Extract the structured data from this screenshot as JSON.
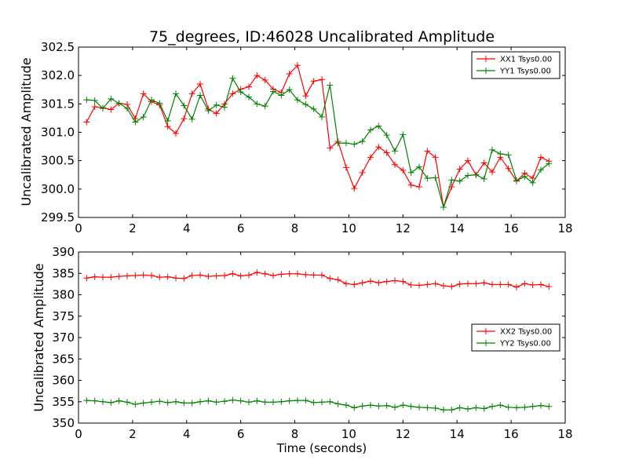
{
  "chart_data": [
    {
      "type": "line",
      "title": "75_degrees, ID:46028 Uncalibrated Amplitude",
      "xlabel": "",
      "ylabel": "Uncalibrated Amplitude",
      "xlim": [
        0,
        18
      ],
      "ylim": [
        299.5,
        302.5
      ],
      "xticks": [
        "0",
        "2",
        "4",
        "6",
        "8",
        "10",
        "12",
        "14",
        "16",
        "18"
      ],
      "yticks": [
        "299.5",
        "300.0",
        "300.5",
        "301.0",
        "301.5",
        "302.0",
        "302.5"
      ],
      "grid": false,
      "legend_position": "top-right",
      "x": [
        0.3,
        0.6,
        0.9,
        1.2,
        1.5,
        1.8,
        2.1,
        2.4,
        2.7,
        3.0,
        3.3,
        3.6,
        3.9,
        4.2,
        4.5,
        4.8,
        5.1,
        5.4,
        5.7,
        6.0,
        6.3,
        6.6,
        6.9,
        7.2,
        7.5,
        7.8,
        8.1,
        8.4,
        8.7,
        9.0,
        9.3,
        9.6,
        9.9,
        10.2,
        10.5,
        10.8,
        11.1,
        11.4,
        11.7,
        12.0,
        12.3,
        12.6,
        12.9,
        13.2,
        13.5,
        13.8,
        14.1,
        14.4,
        14.7,
        15.0,
        15.3,
        15.6,
        15.9,
        16.2,
        16.5,
        16.8,
        17.1,
        17.4
      ],
      "series": [
        {
          "name": "XX1 Tsys0.00",
          "color": "#ff0000",
          "values": [
            301.18,
            301.45,
            301.43,
            301.4,
            301.51,
            301.49,
            301.24,
            301.68,
            301.54,
            301.48,
            301.1,
            300.98,
            301.24,
            301.68,
            301.85,
            301.41,
            301.33,
            301.5,
            301.68,
            301.76,
            301.8,
            302.0,
            301.92,
            301.76,
            301.7,
            302.03,
            302.18,
            301.64,
            301.9,
            301.93,
            300.72,
            300.84,
            300.38,
            300.01,
            300.29,
            300.56,
            300.74,
            300.64,
            300.43,
            300.33,
            300.07,
            300.04,
            300.67,
            300.56,
            299.68,
            300.04,
            300.35,
            300.5,
            300.25,
            300.46,
            300.3,
            300.56,
            300.36,
            300.14,
            300.28,
            300.19,
            300.56,
            300.49
          ]
        },
        {
          "name": "YY1 Tsys0.00",
          "color": "#008000",
          "values": [
            301.57,
            301.56,
            301.42,
            301.59,
            301.51,
            301.42,
            301.18,
            301.27,
            301.57,
            301.51,
            301.2,
            301.68,
            301.47,
            301.23,
            301.65,
            301.38,
            301.48,
            301.44,
            301.95,
            301.71,
            301.62,
            301.5,
            301.46,
            301.72,
            301.65,
            301.75,
            301.57,
            301.49,
            301.41,
            301.27,
            301.83,
            300.81,
            300.81,
            300.79,
            300.84,
            301.04,
            301.11,
            300.95,
            300.67,
            300.96,
            300.29,
            300.39,
            300.19,
            300.2,
            299.68,
            300.16,
            300.14,
            300.24,
            300.25,
            300.18,
            300.69,
            300.62,
            300.6,
            300.15,
            300.22,
            300.11,
            300.34,
            300.45
          ]
        }
      ]
    },
    {
      "type": "line",
      "title": "",
      "xlabel": "Time (seconds)",
      "ylabel": "Uncalibrated Amplitude",
      "xlim": [
        0,
        18
      ],
      "ylim": [
        350,
        390
      ],
      "xticks": [
        "0",
        "2",
        "4",
        "6",
        "8",
        "10",
        "12",
        "14",
        "16",
        "18"
      ],
      "yticks": [
        "350",
        "355",
        "360",
        "365",
        "370",
        "375",
        "380",
        "385",
        "390"
      ],
      "grid": false,
      "legend_position": "center-right",
      "x": [
        0.3,
        0.6,
        0.9,
        1.2,
        1.5,
        1.8,
        2.1,
        2.4,
        2.7,
        3.0,
        3.3,
        3.6,
        3.9,
        4.2,
        4.5,
        4.8,
        5.1,
        5.4,
        5.7,
        6.0,
        6.3,
        6.6,
        6.9,
        7.2,
        7.5,
        7.8,
        8.1,
        8.4,
        8.7,
        9.0,
        9.3,
        9.6,
        9.9,
        10.2,
        10.5,
        10.8,
        11.1,
        11.4,
        11.7,
        12.0,
        12.3,
        12.6,
        12.9,
        13.2,
        13.5,
        13.8,
        14.1,
        14.4,
        14.7,
        15.0,
        15.3,
        15.6,
        15.9,
        16.2,
        16.5,
        16.8,
        17.1,
        17.4
      ],
      "series": [
        {
          "name": "XX2 Tsys0.00",
          "color": "#ff0000",
          "values": [
            383.9,
            384.2,
            384.1,
            384.1,
            384.3,
            384.4,
            384.5,
            384.6,
            384.5,
            384.1,
            384.2,
            383.9,
            383.8,
            384.5,
            384.6,
            384.3,
            384.4,
            384.5,
            384.9,
            384.4,
            384.6,
            385.2,
            384.9,
            384.5,
            384.8,
            384.9,
            384.9,
            384.7,
            384.6,
            384.6,
            383.8,
            383.5,
            382.6,
            382.4,
            382.8,
            383.2,
            382.8,
            383.1,
            383.3,
            383.1,
            382.3,
            382.2,
            382.4,
            382.6,
            382.1,
            381.9,
            382.5,
            382.6,
            382.6,
            382.8,
            382.4,
            382.4,
            382.4,
            381.8,
            382.6,
            382.3,
            382.4,
            381.9
          ]
        },
        {
          "name": "YY2 Tsys0.00",
          "color": "#008000",
          "values": [
            355.3,
            355.2,
            355.0,
            354.8,
            355.2,
            354.9,
            354.4,
            354.7,
            354.9,
            355.1,
            354.8,
            355.0,
            354.7,
            354.7,
            355.0,
            355.2,
            354.9,
            355.1,
            355.4,
            355.2,
            354.9,
            355.2,
            354.9,
            354.9,
            355.0,
            355.2,
            355.3,
            355.3,
            354.8,
            354.9,
            355.0,
            354.5,
            354.2,
            353.6,
            354.0,
            354.2,
            354.0,
            354.1,
            353.7,
            354.2,
            353.9,
            353.7,
            353.6,
            353.5,
            353.1,
            353.1,
            353.6,
            353.3,
            353.6,
            353.4,
            353.9,
            354.2,
            353.7,
            353.6,
            353.7,
            353.9,
            354.1,
            353.9
          ]
        }
      ]
    }
  ]
}
